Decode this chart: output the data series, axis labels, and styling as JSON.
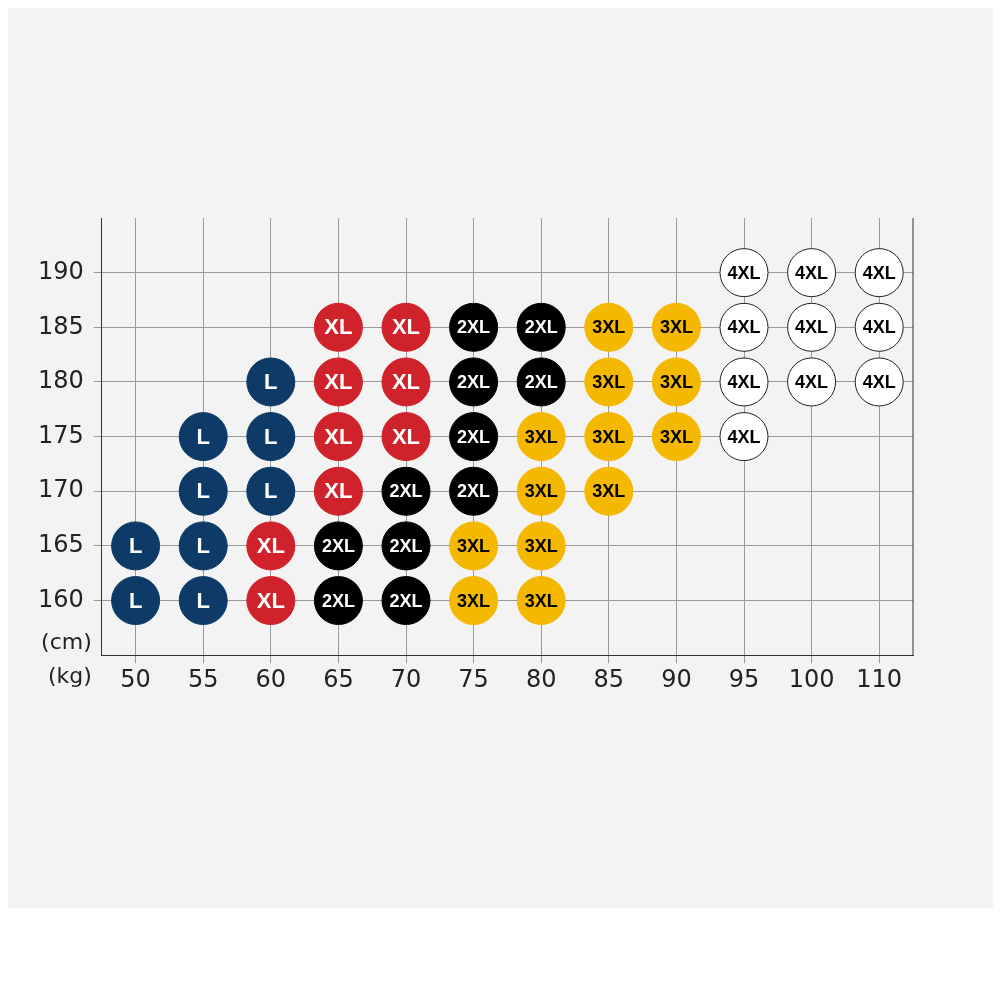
{
  "chart_data": {
    "type": "scatter",
    "xlabel": "(kg)",
    "ylabel": "(cm)",
    "categories": [
      "50",
      "55",
      "60",
      "65",
      "70",
      "75",
      "80",
      "85",
      "90",
      "95",
      "100",
      "110"
    ],
    "ylim": [
      155,
      195
    ],
    "yticks": [
      160,
      165,
      170,
      175,
      180,
      185,
      190
    ],
    "grid": true,
    "marker": "circle",
    "series": [
      {
        "name": "L",
        "color": "#0d3a66",
        "x": [
          "50",
          "50",
          "55",
          "55",
          "55",
          "55",
          "60",
          "60",
          "60"
        ],
        "values": [
          165,
          160,
          175,
          170,
          165,
          160,
          180,
          175,
          170
        ]
      },
      {
        "name": "XL",
        "color": "#d0222a",
        "x": [
          "60",
          "60",
          "65",
          "65",
          "65",
          "65",
          "70",
          "70",
          "70"
        ],
        "values": [
          165,
          160,
          185,
          180,
          175,
          170,
          185,
          180,
          175
        ]
      },
      {
        "name": "2XL",
        "color": "#000000",
        "x": [
          "65",
          "65",
          "70",
          "70",
          "70",
          "75",
          "75",
          "75",
          "75",
          "80",
          "80"
        ],
        "values": [
          165,
          160,
          170,
          165,
          160,
          185,
          180,
          175,
          170,
          185,
          180
        ]
      },
      {
        "name": "3XL",
        "color": "#f5b800",
        "x": [
          "75",
          "75",
          "80",
          "80",
          "80",
          "80",
          "85",
          "85",
          "85",
          "85",
          "90",
          "90",
          "90"
        ],
        "values": [
          165,
          160,
          175,
          170,
          165,
          160,
          185,
          180,
          175,
          170,
          185,
          180,
          175
        ]
      },
      {
        "name": "4XL",
        "color": "#ffffff",
        "x": [
          "95",
          "95",
          "95",
          "95",
          "100",
          "100",
          "100",
          "110",
          "110",
          "110"
        ],
        "values": [
          190,
          185,
          180,
          175,
          190,
          185,
          180,
          190,
          185,
          180
        ]
      }
    ]
  }
}
